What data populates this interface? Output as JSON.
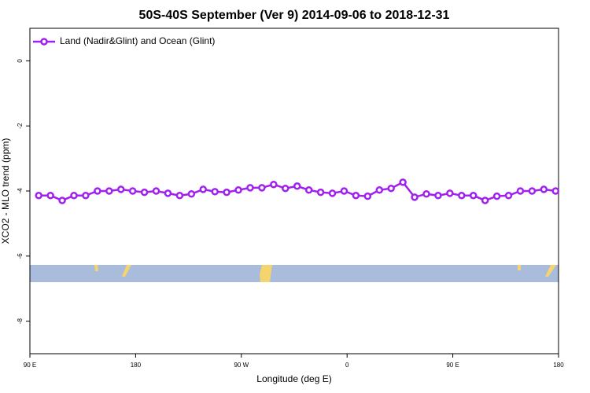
{
  "chart_data": {
    "type": "line",
    "title": "50S-40S September (Ver 9)   2014-09-06 to 2018-12-31",
    "xlabel": "Longitude (deg E)",
    "ylabel": "XCO2 - MLO trend (ppm)",
    "x": [
      97.5,
      107.5,
      117.5,
      127.5,
      137.5,
      147.5,
      157.5,
      167.5,
      177.5,
      187.5,
      197.5,
      207.5,
      217.5,
      227.5,
      237.5,
      247.5,
      257.5,
      267.5,
      277.5,
      287.5,
      297.5,
      307.5,
      317.5,
      327.5,
      337.5,
      347.5,
      357.5,
      367.5,
      377.5,
      387.5,
      397.5,
      407.5,
      417.5,
      427.5,
      437.5,
      447.5,
      457.5,
      467.5,
      477.5,
      487.5,
      497.5,
      507.5,
      517.5,
      527.5,
      537.5
    ],
    "series": [
      {
        "name": "Land (Nadir&Glint) and Ocean (Glint)",
        "color": "#a020f0",
        "values": [
          -4.14,
          -4.14,
          -4.29,
          -4.14,
          -4.14,
          -4.0,
          -4.0,
          -3.95,
          -4.0,
          -4.04,
          -4.0,
          -4.07,
          -4.14,
          -4.09,
          -3.95,
          -4.02,
          -4.04,
          -3.97,
          -3.9,
          -3.9,
          -3.8,
          -3.92,
          -3.85,
          -3.97,
          -4.04,
          -4.07,
          -4.0,
          -4.14,
          -4.16,
          -3.97,
          -3.92,
          -3.73,
          -4.19,
          -4.09,
          -4.14,
          -4.07,
          -4.14,
          -4.14,
          -4.29,
          -4.16,
          -4.14,
          -4.0,
          -4.0,
          -3.95,
          -4.0
        ]
      }
    ],
    "xlim": [
      90,
      540
    ],
    "xticks": [
      {
        "value": 90,
        "label": "90 E"
      },
      {
        "value": 180,
        "label": "180"
      },
      {
        "value": 270,
        "label": "90 W"
      },
      {
        "value": 360,
        "label": "0"
      },
      {
        "value": 450,
        "label": "90 E"
      },
      {
        "value": 540,
        "label": "180"
      }
    ],
    "ylim": [
      -9,
      1
    ],
    "yticks": [
      0,
      -2,
      -4,
      -6,
      -8
    ],
    "legend": "top-left"
  }
}
